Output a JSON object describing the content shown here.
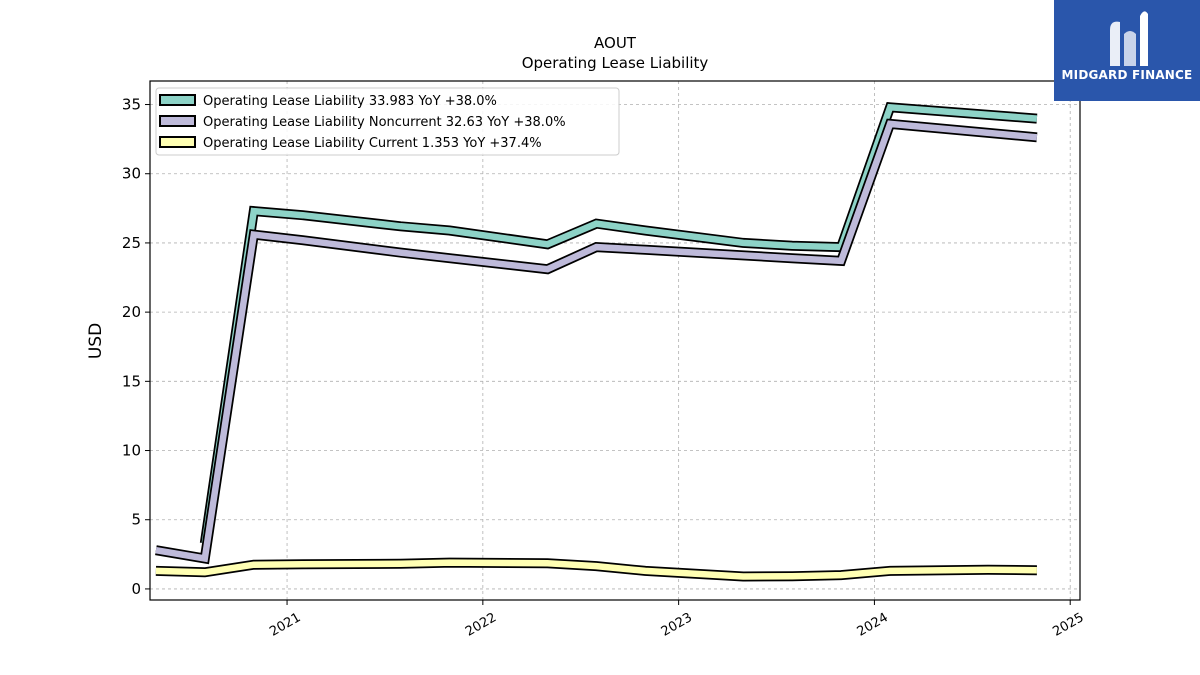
{
  "chart_data": {
    "type": "line",
    "title": "AOUT",
    "subtitle": "Operating Lease Liability",
    "ylabel": "USD",
    "xlabel": "",
    "xlim": [
      2020.3,
      2025.05
    ],
    "ylim": [
      -0.8,
      36.7
    ],
    "yticks": [
      0,
      5,
      10,
      15,
      20,
      25,
      30,
      35
    ],
    "xticks": [
      "2021",
      "2022",
      "2023",
      "2024",
      "2025"
    ],
    "grid": true,
    "legend_position": "top-left",
    "series": [
      {
        "name": "Operating Lease Liability",
        "legend_label": "Operating Lease Liability  33.983 YoY +38.0%",
        "color": "#8dd3c7",
        "points": [
          [
            2020.58,
            3.3
          ],
          [
            2020.83,
            27.3
          ],
          [
            2021.08,
            27.0
          ],
          [
            2021.58,
            26.2
          ],
          [
            2021.83,
            25.9
          ],
          [
            2022.33,
            24.9
          ],
          [
            2022.58,
            26.4
          ],
          [
            2022.83,
            25.9
          ],
          [
            2023.33,
            25.0
          ],
          [
            2023.58,
            24.8
          ],
          [
            2023.83,
            24.7
          ],
          [
            2024.08,
            34.8
          ],
          [
            2024.83,
            33.98
          ]
        ]
      },
      {
        "name": "Operating Lease Liability Noncurrent",
        "legend_label": "Operating Lease Liability Noncurrent  32.63 YoY +38.0%",
        "color": "#bebada",
        "points": [
          [
            2020.33,
            2.8
          ],
          [
            2020.58,
            2.2
          ],
          [
            2020.83,
            25.6
          ],
          [
            2021.08,
            25.2
          ],
          [
            2021.58,
            24.3
          ],
          [
            2021.83,
            23.9
          ],
          [
            2022.33,
            23.1
          ],
          [
            2022.58,
            24.7
          ],
          [
            2022.83,
            24.5
          ],
          [
            2023.33,
            24.1
          ],
          [
            2023.58,
            23.9
          ],
          [
            2023.83,
            23.7
          ],
          [
            2024.08,
            33.6
          ],
          [
            2024.83,
            32.63
          ]
        ]
      },
      {
        "name": "Operating Lease Liability Current",
        "legend_label": "Operating Lease Liability Current  1.353 YoY +37.4%",
        "color": "#ffffb3",
        "points": [
          [
            2020.33,
            1.3
          ],
          [
            2020.58,
            1.2
          ],
          [
            2020.83,
            1.75
          ],
          [
            2021.08,
            1.78
          ],
          [
            2021.58,
            1.82
          ],
          [
            2021.83,
            1.9
          ],
          [
            2022.33,
            1.85
          ],
          [
            2022.58,
            1.65
          ],
          [
            2022.83,
            1.3
          ],
          [
            2023.33,
            0.9
          ],
          [
            2023.58,
            0.92
          ],
          [
            2023.83,
            1.0
          ],
          [
            2024.08,
            1.3
          ],
          [
            2024.58,
            1.38
          ],
          [
            2024.83,
            1.353
          ]
        ]
      }
    ]
  },
  "logo": {
    "text": "MIDGARD FINANCE",
    "bg_color": "#2a56ab"
  }
}
